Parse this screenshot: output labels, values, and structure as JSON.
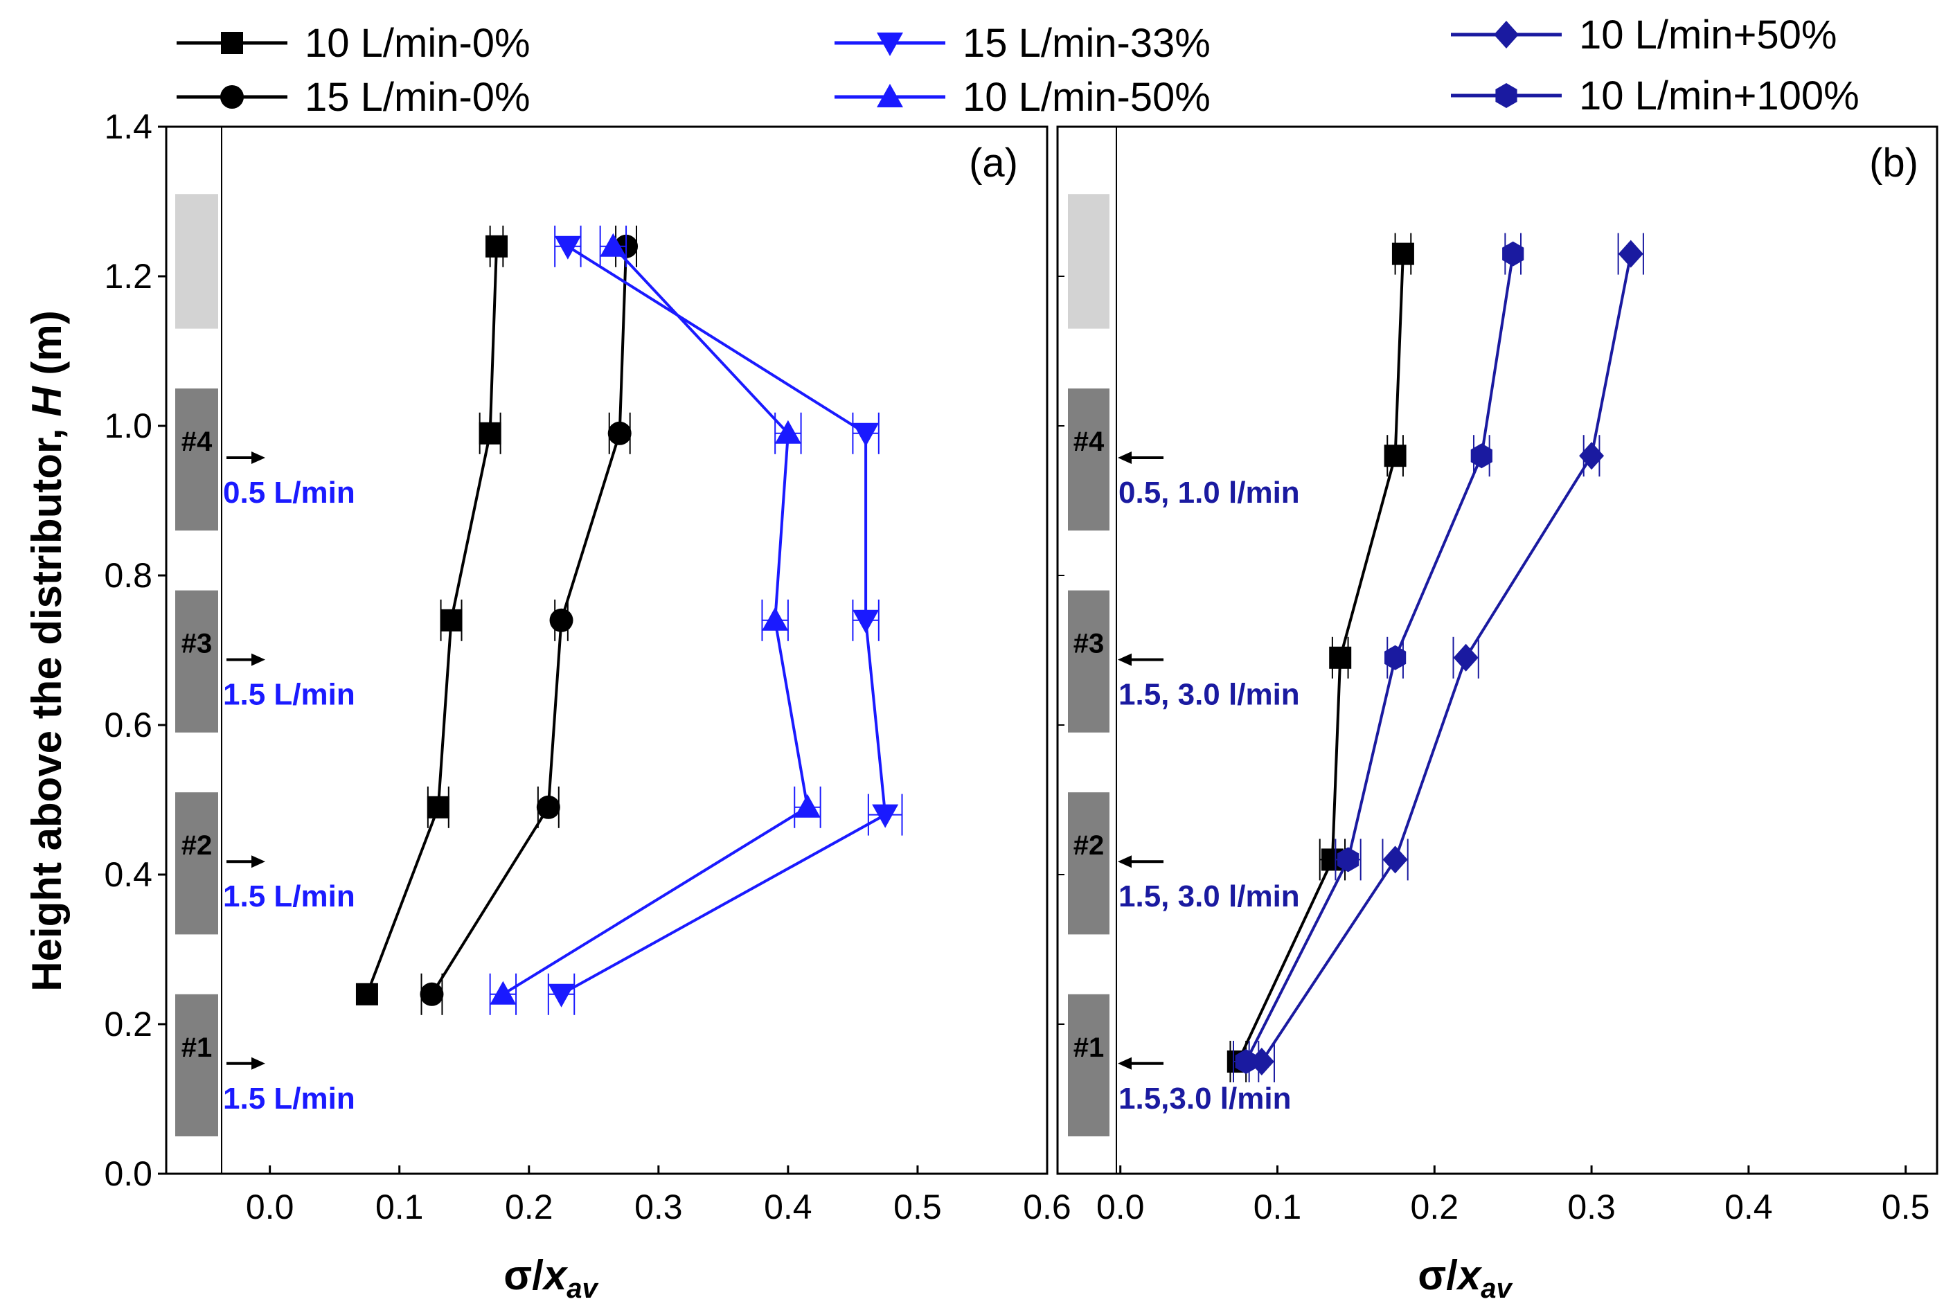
{
  "colors": {
    "black": "#000000",
    "blue": "#1a1aff",
    "navy": "#1a1aa0",
    "zone_dark": "#808080",
    "zone_light": "#d3d3d3"
  },
  "legend": [
    {
      "label": "10 L/min-0%",
      "color": "#000000",
      "marker": "square"
    },
    {
      "label": "15 L/min-0%",
      "color": "#000000",
      "marker": "circle"
    },
    {
      "label": "15 L/min-33%",
      "color": "#1a1aff",
      "marker": "triangle-down"
    },
    {
      "label": "10 L/min-50%",
      "color": "#1a1aff",
      "marker": "triangle-up"
    },
    {
      "label": "10 L/min+50%",
      "color": "#1a1aa0",
      "marker": "diamond"
    },
    {
      "label": "10 L/min+100%",
      "color": "#1a1aa0",
      "marker": "hexagon"
    }
  ],
  "y_axis_title_main": "Height above the distributor, ",
  "y_axis_title_var": "H",
  "y_axis_title_unit": " (m)",
  "chart_data": [
    {
      "type": "line",
      "panel_label": "(a)",
      "xlabel": "σ/x_av",
      "xlabel_parts": {
        "sigma": "σ/",
        "x": "x",
        "sub": "av"
      },
      "ylabel": "Height above the distributor, H (m)",
      "xlim": [
        -0.08,
        0.6
      ],
      "ylim": [
        0.0,
        1.4
      ],
      "xticks": [
        "0.0",
        "0.1",
        "0.2",
        "0.3",
        "0.4",
        "0.5",
        "0.6"
      ],
      "yticks": [
        "0.0",
        "0.2",
        "0.4",
        "0.6",
        "0.8",
        "1.0",
        "1.2",
        "1.4"
      ],
      "series": [
        {
          "name": "10 L/min-0%",
          "x": [
            0.075,
            0.13,
            0.14,
            0.17,
            0.175
          ],
          "y": [
            0.24,
            0.49,
            0.74,
            0.99,
            1.24
          ],
          "err": [
            0.0,
            0.008,
            0.008,
            0.008,
            0.005
          ]
        },
        {
          "name": "15 L/min-0%",
          "x": [
            0.125,
            0.215,
            0.225,
            0.27,
            0.275
          ],
          "y": [
            0.24,
            0.49,
            0.74,
            0.99,
            1.24
          ],
          "err": [
            0.008,
            0.008,
            0.005,
            0.008,
            0.008
          ]
        },
        {
          "name": "15 L/min-33%",
          "x": [
            0.225,
            0.475,
            0.46,
            0.46,
            0.23
          ],
          "y": [
            0.24,
            0.48,
            0.74,
            0.99,
            1.24
          ],
          "err": [
            0.01,
            0.013,
            0.01,
            0.01,
            0.01
          ]
        },
        {
          "name": "10 L/min-50%",
          "x": [
            0.18,
            0.415,
            0.39,
            0.4,
            0.265
          ],
          "y": [
            0.24,
            0.49,
            0.74,
            0.99,
            1.24
          ],
          "err": [
            0.01,
            0.01,
            0.01,
            0.01,
            0.01
          ]
        }
      ],
      "zones": [
        {
          "label": "#1",
          "flow": "1.5 L/min",
          "y_top": 0.24,
          "y_bottom": 0.05
        },
        {
          "label": "#2",
          "flow": "1.5 L/min",
          "y_top": 0.51,
          "y_bottom": 0.32
        },
        {
          "label": "#3",
          "flow": "1.5 L/min",
          "y_top": 0.78,
          "y_bottom": 0.59
        },
        {
          "label": "#4",
          "flow": "0.5 L/min",
          "y_top": 1.05,
          "y_bottom": 0.86
        },
        {
          "label": "",
          "flow": "",
          "y_top": 1.31,
          "y_bottom": 1.13
        }
      ]
    },
    {
      "type": "line",
      "panel_label": "(b)",
      "xlabel": "σ/x_av",
      "xlim": [
        -0.04,
        0.52
      ],
      "ylim": [
        0.0,
        1.4
      ],
      "xticks": [
        "0.0",
        "0.1",
        "0.2",
        "0.3",
        "0.4",
        "0.5"
      ],
      "series": [
        {
          "name": "10 L/min-0%",
          "x": [
            0.075,
            0.135,
            0.14,
            0.175,
            0.18
          ],
          "y": [
            0.15,
            0.42,
            0.69,
            0.96,
            1.23
          ],
          "err": [
            0.005,
            0.008,
            0.005,
            0.005,
            0.005
          ]
        },
        {
          "name": "10 L/min+50%",
          "x": [
            0.09,
            0.175,
            0.22,
            0.3,
            0.325
          ],
          "y": [
            0.15,
            0.42,
            0.69,
            0.96,
            1.23
          ],
          "err": [
            0.008,
            0.008,
            0.008,
            0.005,
            0.008
          ]
        },
        {
          "name": "10 L/min+100%",
          "x": [
            0.08,
            0.145,
            0.175,
            0.23,
            0.25
          ],
          "y": [
            0.15,
            0.42,
            0.69,
            0.96,
            1.23
          ],
          "err": [
            0.008,
            0.008,
            0.005,
            0.005,
            0.005
          ]
        }
      ],
      "zones": [
        {
          "label": "#1",
          "flow": "1.5,3.0 l/min",
          "y_top": 0.24,
          "y_bottom": 0.05
        },
        {
          "label": "#2",
          "flow": "1.5, 3.0 l/min",
          "y_top": 0.51,
          "y_bottom": 0.32
        },
        {
          "label": "#3",
          "flow": "1.5, 3.0 l/min",
          "y_top": 0.78,
          "y_bottom": 0.59
        },
        {
          "label": "#4",
          "flow": "0.5, 1.0 l/min",
          "y_top": 1.05,
          "y_bottom": 0.86
        },
        {
          "label": "",
          "flow": "",
          "y_top": 1.31,
          "y_bottom": 1.13
        }
      ]
    }
  ]
}
